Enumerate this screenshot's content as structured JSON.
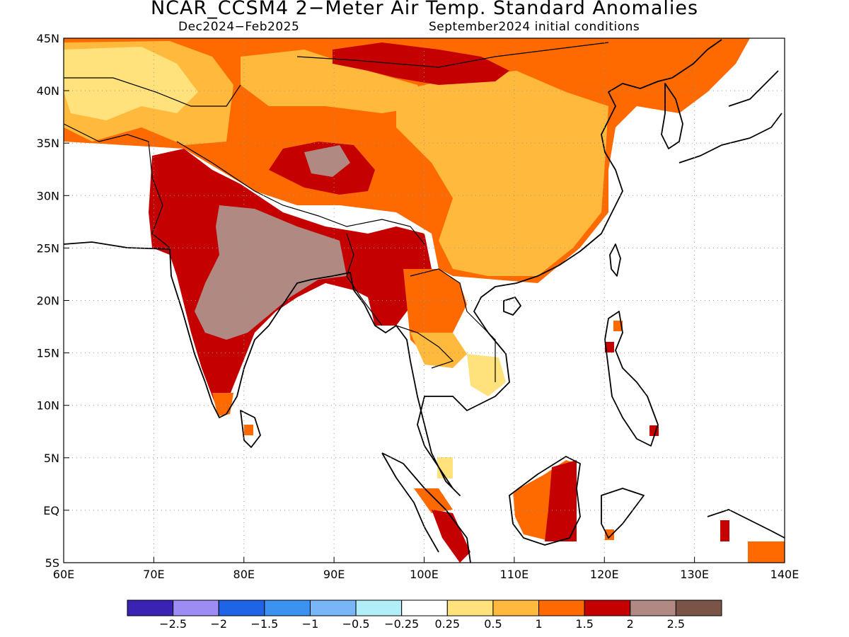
{
  "title": "NCAR_CCSM4 2−Meter Air Temp. Standard Anomalies",
  "subtitle_left": "Dec2024−Feb2025",
  "subtitle_right": "September2024 initial conditions",
  "map": {
    "lon_range": [
      60,
      140
    ],
    "lat_range": [
      -5,
      45
    ],
    "lon_ticks": [
      "60E",
      "70E",
      "80E",
      "90E",
      "100E",
      "110E",
      "120E",
      "130E",
      "140E"
    ],
    "lat_ticks": [
      "45N",
      "40N",
      "35N",
      "30N",
      "25N",
      "20N",
      "15N",
      "10N",
      "5N",
      "EQ",
      "5S"
    ]
  },
  "colorbar": {
    "colors": [
      "#3a22b3",
      "#9c8cf4",
      "#1f63e6",
      "#3c92f0",
      "#78b6f7",
      "#b2eef8",
      "#ffffff",
      "#ffe27b",
      "#ffb93c",
      "#ff6a00",
      "#c40000",
      "#b08a82",
      "#7a5446"
    ],
    "labels": [
      "−2.5",
      "−2",
      "−1.5",
      "−1",
      "−0.5",
      "−0.25",
      "0.25",
      "0.5",
      "1",
      "1.5",
      "2",
      "2.5"
    ]
  }
}
